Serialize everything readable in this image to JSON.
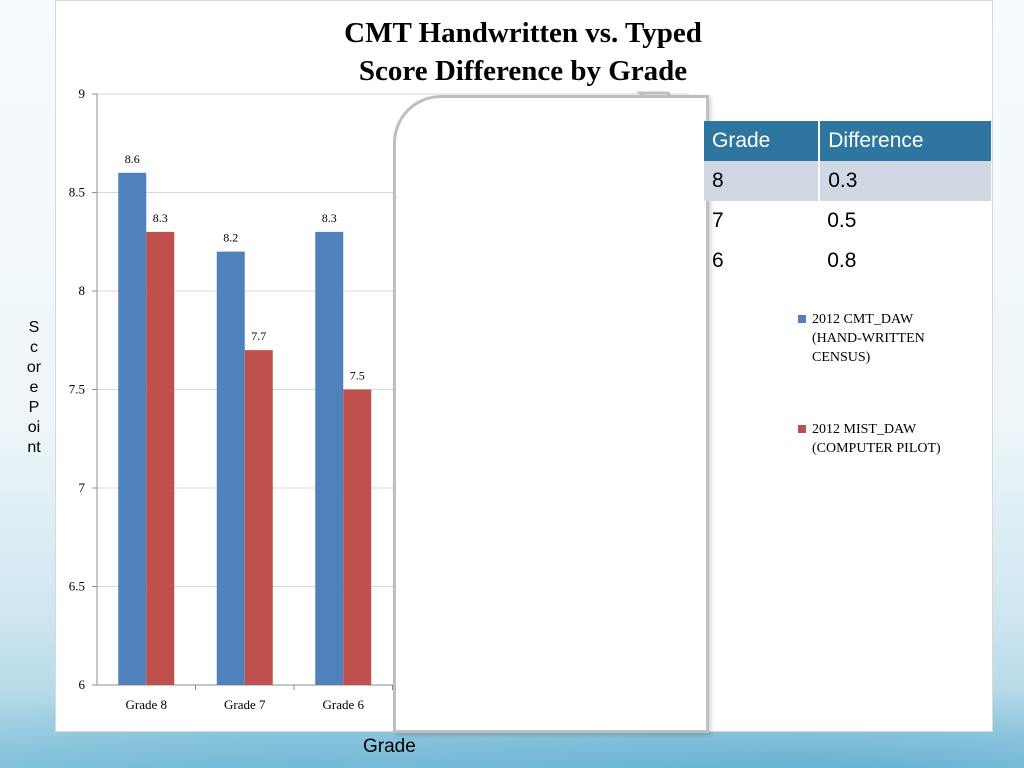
{
  "chart_data": {
    "type": "bar",
    "title_lines": [
      "CMT Handwritten vs. Typed",
      "Score Difference by Grade"
    ],
    "xlabel": "Grade",
    "ylabel": "Score Point",
    "categories": [
      "Grade 8",
      "Grade 7",
      "Grade 6"
    ],
    "ylim": [
      6,
      9
    ],
    "yticks": [
      "6",
      "6.5",
      "7",
      "7.5",
      "8",
      "8.5",
      "9"
    ],
    "grid": true,
    "legend_position": "right",
    "series": [
      {
        "name": "2012 CMT_DAW (HAND-WRITTEN CENSUS)",
        "values": [
          8.6,
          8.2,
          8.3
        ],
        "labels": [
          "8.6",
          "8.2",
          "8.3"
        ],
        "color": "#4f81bd"
      },
      {
        "name": "2012 MIST_DAW (COMPUTER PILOT)",
        "values": [
          8.3,
          7.7,
          7.5
        ],
        "labels": [
          "8.3",
          "7.7",
          "7.5"
        ],
        "color": "#c0504d"
      }
    ]
  },
  "table": {
    "headers": [
      "Grade",
      "Difference"
    ],
    "rows": [
      [
        "8",
        "0.3"
      ],
      [
        "7",
        "0.5"
      ],
      [
        "6",
        "0.8"
      ]
    ]
  },
  "legend": {
    "items": [
      {
        "lines": [
          "2012 CMT_DAW",
          "(HAND-WRITTEN",
          "CENSUS)"
        ],
        "color": "#4f81bd"
      },
      {
        "lines": [
          "2012 MIST_DAW",
          "(COMPUTER PILOT)"
        ],
        "color": "#c0504d"
      }
    ]
  },
  "colors": {
    "header_blue": "#2e75a0",
    "row_shade": "#cfd8e3",
    "callout_border": "#bfbfbf"
  }
}
